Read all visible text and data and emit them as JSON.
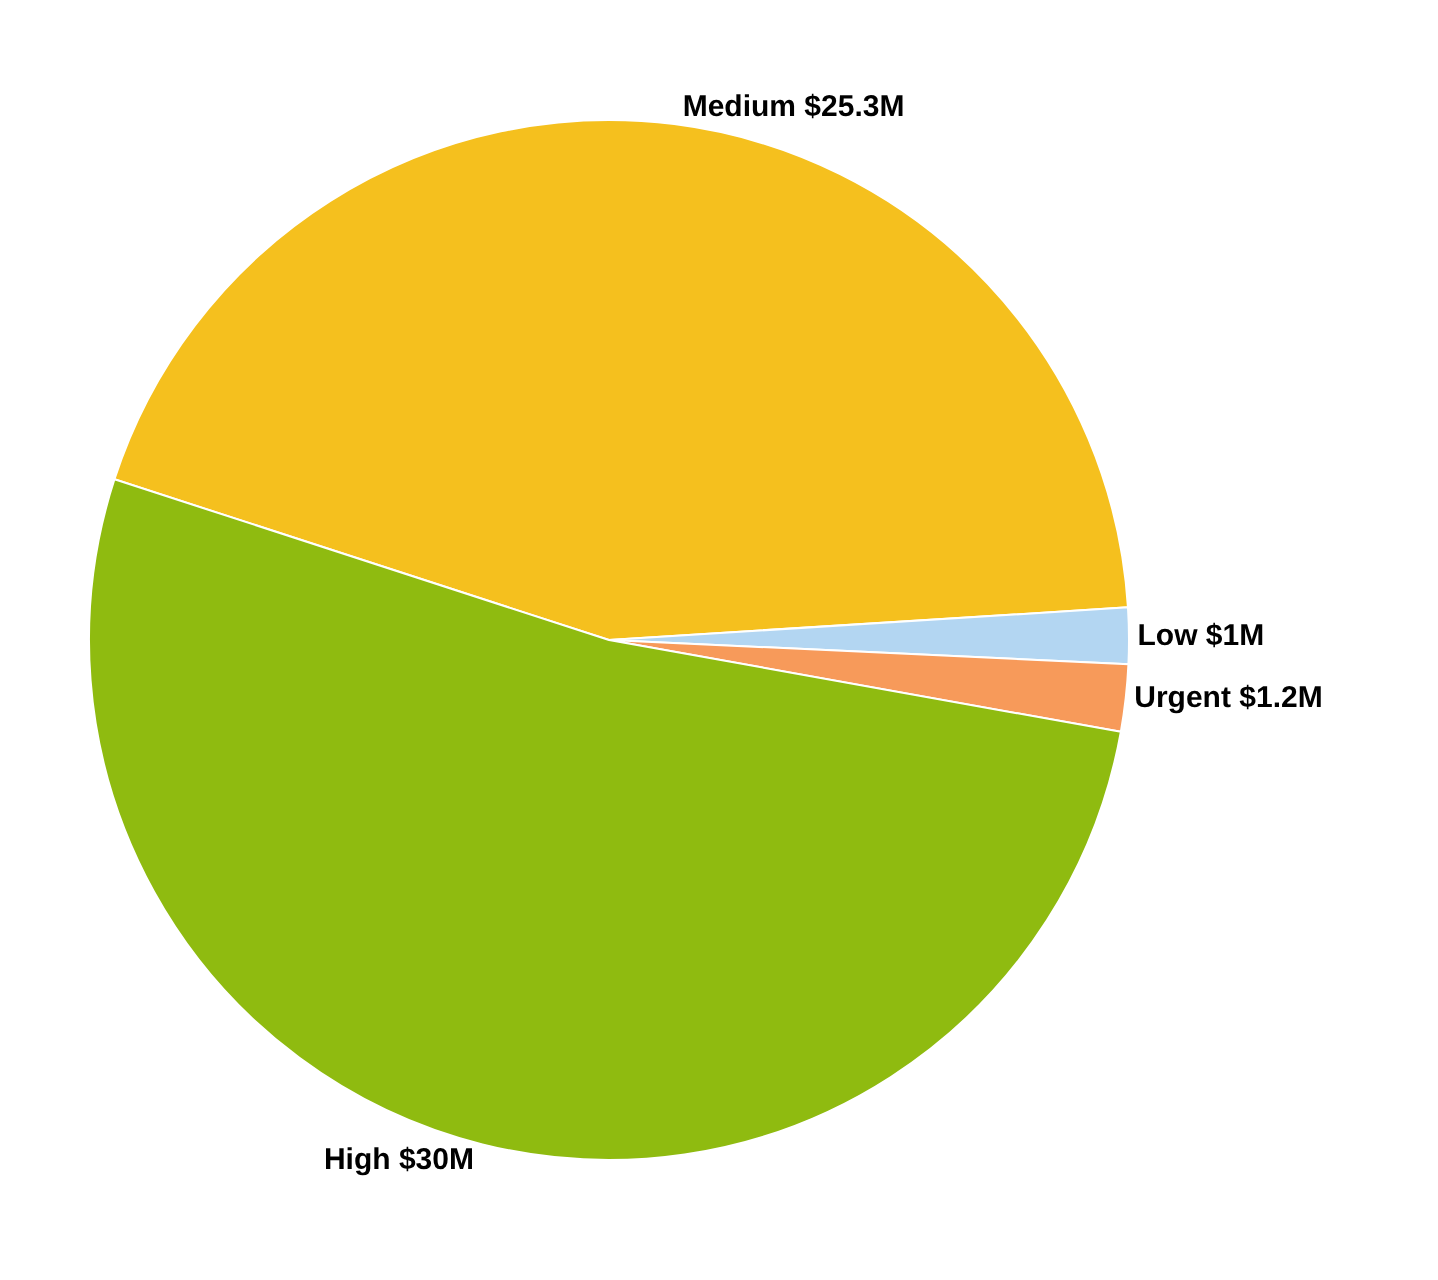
{
  "chart_data": {
    "type": "pie",
    "categories": [
      "Medium",
      "Low",
      "Urgent",
      "High"
    ],
    "values": [
      25.3,
      1,
      1.2,
      30
    ],
    "value_labels": [
      "$25.3M",
      "$1M",
      "$1.2M",
      "$30M"
    ],
    "colors": [
      "#f5c01e",
      "#b3d6f2",
      "#f79a5a",
      "#8fbb10"
    ],
    "legend": false
  }
}
